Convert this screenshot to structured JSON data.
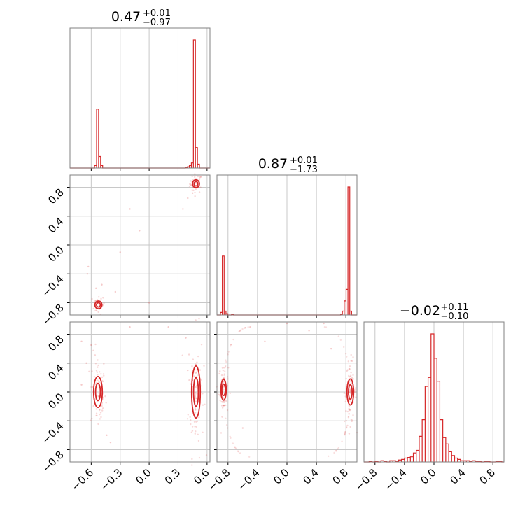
{
  "chart_data": [
    {
      "type": "step_histogram",
      "panel": "0,0",
      "title": {
        "value": "0.47",
        "plus": "+0.01",
        "minus": "−0.97"
      },
      "xlim": [
        -0.82,
        0.63
      ],
      "grid": true,
      "color": "#d62728",
      "x_ticks": [
        "−0.6",
        "−0.3",
        "0.0",
        "0.3",
        "0.6"
      ],
      "x_tick_values": [
        -0.6,
        -0.3,
        0.0,
        0.3,
        0.6
      ],
      "bins": [
        {
          "x": -0.555,
          "y": 0.02
        },
        {
          "x": -0.534,
          "y": 0.46
        },
        {
          "x": -0.513,
          "y": 0.09
        },
        {
          "x": -0.492,
          "y": 0.02
        },
        {
          "x": 0.385,
          "y": 0.005
        },
        {
          "x": 0.406,
          "y": 0.01
        },
        {
          "x": 0.427,
          "y": 0.02
        },
        {
          "x": 0.448,
          "y": 0.04
        },
        {
          "x": 0.469,
          "y": 1.0
        },
        {
          "x": 0.49,
          "y": 0.16
        },
        {
          "x": 0.511,
          "y": 0.03
        }
      ],
      "bin_width": 0.021
    },
    {
      "type": "contour_scatter",
      "panel": "1,0",
      "xlim": [
        -0.82,
        0.63
      ],
      "ylim": [
        -0.97,
        0.97
      ],
      "grid": true,
      "color": "#d62728",
      "y_ticks": [
        "−0.8",
        "−0.4",
        "0.0",
        "0.4",
        "0.8"
      ],
      "y_tick_values": [
        -0.8,
        -0.4,
        0.0,
        0.4,
        0.8
      ],
      "modes": [
        {
          "x": 0.485,
          "y": 0.85,
          "sx": 0.02,
          "sy": 0.03,
          "n": 45
        },
        {
          "x": -0.525,
          "y": -0.83,
          "sx": 0.02,
          "sy": 0.03,
          "n": 25
        }
      ],
      "points": [
        [
          -0.2,
          0.5
        ],
        [
          -0.1,
          0.2
        ],
        [
          -0.3,
          -0.1
        ],
        [
          -0.63,
          -0.3
        ],
        [
          -0.64,
          -0.4
        ],
        [
          -0.49,
          -0.55
        ],
        [
          -0.55,
          -0.6
        ],
        [
          0.35,
          0.5
        ],
        [
          -0.35,
          -0.65
        ],
        [
          0.0,
          -0.8
        ],
        [
          0.4,
          0.65
        ],
        [
          0.45,
          0.72
        ]
      ]
    },
    {
      "type": "step_histogram",
      "panel": "1,1",
      "title": {
        "value": "0.87",
        "plus": "+0.01",
        "minus": "−1.73"
      },
      "xlim": [
        -0.95,
        0.95
      ],
      "grid": true,
      "color": "#d62728",
      "bins": [
        {
          "x": -0.89,
          "y": 0.02
        },
        {
          "x": -0.865,
          "y": 0.46
        },
        {
          "x": -0.84,
          "y": 0.03
        },
        {
          "x": -0.815,
          "y": 0.01
        },
        {
          "x": -0.74,
          "y": 0.005
        },
        {
          "x": 0.74,
          "y": 0.005
        },
        {
          "x": 0.765,
          "y": 0.03
        },
        {
          "x": 0.79,
          "y": 0.11
        },
        {
          "x": 0.815,
          "y": 0.2
        },
        {
          "x": 0.84,
          "y": 1.0
        },
        {
          "x": 0.865,
          "y": 0.03
        }
      ],
      "bin_width": 0.025
    },
    {
      "type": "contour_scatter",
      "panel": "2,0",
      "xlim": [
        -0.82,
        0.63
      ],
      "ylim": [
        -0.97,
        0.97
      ],
      "grid": true,
      "color": "#d62728",
      "modes": [
        {
          "x": -0.53,
          "y": 0.0,
          "sx": 0.025,
          "sy": 0.12,
          "n": 70
        },
        {
          "x": 0.485,
          "y": 0.0,
          "sx": 0.025,
          "sy": 0.2,
          "n": 80
        }
      ],
      "points": [
        [
          -0.7,
          0.7
        ],
        [
          -0.2,
          0.9
        ],
        [
          0.2,
          0.9
        ],
        [
          0.38,
          0.75
        ],
        [
          -0.65,
          0.4
        ],
        [
          -0.44,
          -0.6
        ],
        [
          -0.4,
          -0.7
        ],
        [
          -0.6,
          0.65
        ],
        [
          -0.7,
          0.1
        ],
        [
          0.4,
          0.3
        ]
      ]
    },
    {
      "type": "contour_scatter",
      "panel": "2,1",
      "xlim": [
        -0.95,
        0.95
      ],
      "ylim": [
        -0.97,
        0.97
      ],
      "grid": true,
      "color": "#d62728",
      "arc": true,
      "modes": [
        {
          "x": -0.86,
          "y": 0.03,
          "sx": 0.02,
          "sy": 0.08,
          "n": 60
        },
        {
          "x": 0.86,
          "y": 0.0,
          "sx": 0.025,
          "sy": 0.1,
          "n": 80
        }
      ],
      "points": [
        [
          -0.5,
          0.9
        ],
        [
          -0.3,
          0.7
        ],
        [
          0.0,
          0.95
        ],
        [
          0.3,
          0.85
        ],
        [
          0.5,
          0.95
        ],
        [
          0.6,
          0.6
        ],
        [
          -0.6,
          -0.5
        ]
      ]
    },
    {
      "type": "step_histogram",
      "panel": "2,2",
      "title": {
        "value": "−0.02",
        "plus": "+0.11",
        "minus": "−0.10"
      },
      "xlim": [
        -0.95,
        0.95
      ],
      "grid": true,
      "color": "#d62728",
      "x_ticks": [
        "−0.8",
        "−0.4",
        "0.0",
        "0.4",
        "0.8"
      ],
      "x_tick_values": [
        -0.8,
        -0.4,
        0.0,
        0.4,
        0.8
      ],
      "bins": [
        {
          "x": -0.9,
          "y": 0.0
        },
        {
          "x": -0.86,
          "y": 0.005
        },
        {
          "x": -0.82,
          "y": 0.0
        },
        {
          "x": -0.78,
          "y": 0.005
        },
        {
          "x": -0.74,
          "y": 0.0
        },
        {
          "x": -0.7,
          "y": 0.01
        },
        {
          "x": -0.66,
          "y": 0.005
        },
        {
          "x": -0.62,
          "y": 0.0
        },
        {
          "x": -0.58,
          "y": 0.01
        },
        {
          "x": -0.54,
          "y": 0.01
        },
        {
          "x": -0.5,
          "y": 0.005
        },
        {
          "x": -0.46,
          "y": 0.015
        },
        {
          "x": -0.42,
          "y": 0.02
        },
        {
          "x": -0.38,
          "y": 0.03
        },
        {
          "x": -0.34,
          "y": 0.035
        },
        {
          "x": -0.3,
          "y": 0.04
        },
        {
          "x": -0.26,
          "y": 0.07
        },
        {
          "x": -0.22,
          "y": 0.09
        },
        {
          "x": -0.18,
          "y": 0.2
        },
        {
          "x": -0.14,
          "y": 0.33
        },
        {
          "x": -0.1,
          "y": 0.59
        },
        {
          "x": -0.06,
          "y": 0.66
        },
        {
          "x": -0.02,
          "y": 1.0
        },
        {
          "x": 0.02,
          "y": 0.81
        },
        {
          "x": 0.06,
          "y": 0.63
        },
        {
          "x": 0.1,
          "y": 0.33
        },
        {
          "x": 0.14,
          "y": 0.19
        },
        {
          "x": 0.18,
          "y": 0.14
        },
        {
          "x": 0.22,
          "y": 0.08
        },
        {
          "x": 0.26,
          "y": 0.05
        },
        {
          "x": 0.3,
          "y": 0.03
        },
        {
          "x": 0.34,
          "y": 0.02
        },
        {
          "x": 0.38,
          "y": 0.01
        },
        {
          "x": 0.42,
          "y": 0.01
        },
        {
          "x": 0.46,
          "y": 0.01
        },
        {
          "x": 0.5,
          "y": 0.005
        },
        {
          "x": 0.54,
          "y": 0.01
        },
        {
          "x": 0.58,
          "y": 0.005
        },
        {
          "x": 0.62,
          "y": 0.005
        },
        {
          "x": 0.66,
          "y": 0.0
        },
        {
          "x": 0.7,
          "y": 0.005
        },
        {
          "x": 0.74,
          "y": 0.005
        },
        {
          "x": 0.78,
          "y": 0.0
        },
        {
          "x": 0.82,
          "y": 0.0
        },
        {
          "x": 0.86,
          "y": 0.005
        },
        {
          "x": 0.9,
          "y": 0.005
        }
      ],
      "bin_width": 0.04
    }
  ],
  "shared_axis_ticks": {
    "col1_x_ticks": [
      "−0.8",
      "−0.4",
      "0.0",
      "0.4",
      "0.8"
    ],
    "col1_x_tick_values": [
      -0.8,
      -0.4,
      0.0,
      0.4,
      0.8
    ],
    "row2_y_ticks": [
      "−0.8",
      "−0.4",
      "0.0",
      "0.4",
      "0.8"
    ],
    "row2_y_tick_values": [
      -0.8,
      -0.4,
      0.0,
      0.4,
      0.8
    ]
  }
}
